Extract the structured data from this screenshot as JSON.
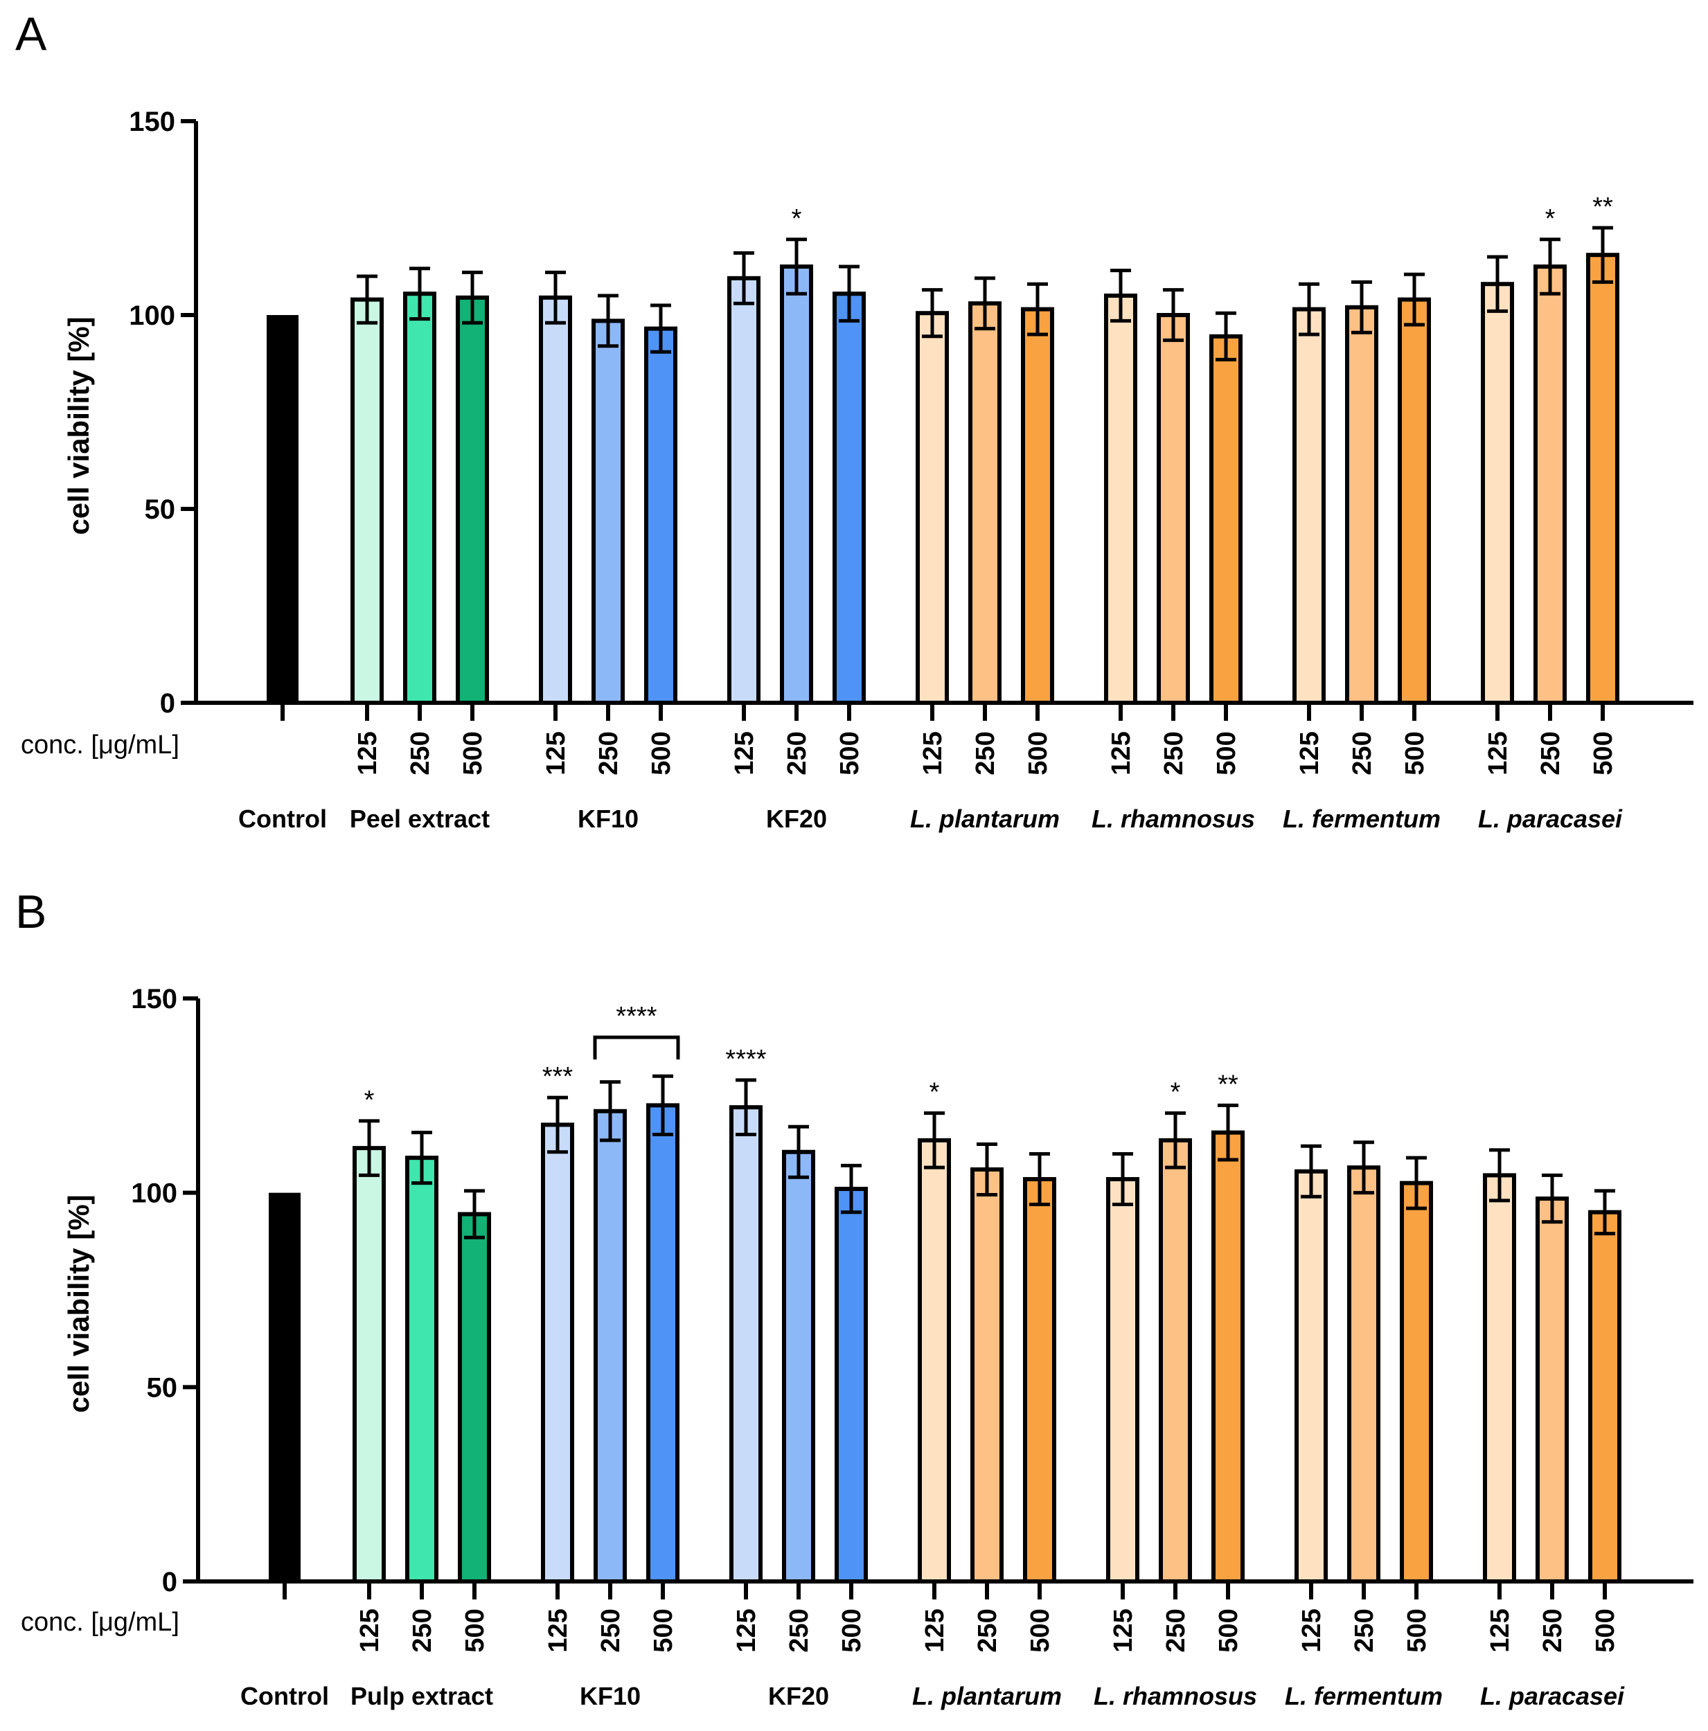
{
  "chart_data": [
    {
      "panel_label": "A",
      "type": "bar",
      "ylabel": "cell viability [%]",
      "ylim": [
        0,
        150
      ],
      "yticks": [
        "0",
        "50",
        "100",
        "150"
      ],
      "xlabel": "conc. [μg/mL]",
      "control": {
        "label": "Control",
        "value": 100,
        "color": "#000000"
      },
      "groups": [
        {
          "name": "Peel extract",
          "italic": false,
          "colors": [
            "#c9f7e4",
            "#3fe6ad",
            "#12b176"
          ],
          "values": [
            104,
            105.5,
            104.5
          ],
          "errors": [
            6,
            6.5,
            6.5
          ],
          "stars": [
            "",
            "",
            ""
          ]
        },
        {
          "name": "KF10",
          "italic": false,
          "colors": [
            "#c8dcfa",
            "#8db8f8",
            "#4e93f5"
          ],
          "values": [
            104.5,
            98.5,
            96.5
          ],
          "errors": [
            6.5,
            6.5,
            6
          ],
          "stars": [
            "",
            "",
            ""
          ]
        },
        {
          "name": "KF20",
          "italic": false,
          "colors": [
            "#c8dcfa",
            "#8db8f8",
            "#4e93f5"
          ],
          "values": [
            109.5,
            112.5,
            105.5
          ],
          "errors": [
            6.5,
            7,
            7
          ],
          "stars": [
            "",
            "*",
            ""
          ]
        },
        {
          "name": "L. plantarum",
          "italic": true,
          "colors": [
            "#fde1c0",
            "#fdc085",
            "#f8a242"
          ],
          "values": [
            100.5,
            103,
            101.5
          ],
          "errors": [
            6,
            6.5,
            6.5
          ],
          "stars": [
            "",
            "",
            ""
          ]
        },
        {
          "name": "L. rhamnosus",
          "italic": true,
          "colors": [
            "#fde1c0",
            "#fdc085",
            "#f8a242"
          ],
          "values": [
            105,
            100,
            94.5
          ],
          "errors": [
            6.5,
            6.5,
            6
          ],
          "stars": [
            "",
            "",
            ""
          ]
        },
        {
          "name": "L. fermentum",
          "italic": true,
          "colors": [
            "#fde1c0",
            "#fdc085",
            "#f8a242"
          ],
          "values": [
            101.5,
            102,
            104
          ],
          "errors": [
            6.5,
            6.5,
            6.5
          ],
          "stars": [
            "",
            "",
            ""
          ]
        },
        {
          "name": "L. paracasei",
          "italic": true,
          "colors": [
            "#fde1c0",
            "#fdc085",
            "#f8a242"
          ],
          "values": [
            108,
            112.5,
            115.5
          ],
          "errors": [
            7,
            7,
            7
          ],
          "stars": [
            "",
            "*",
            "**"
          ]
        }
      ],
      "concentrations": [
        "125",
        "250",
        "500"
      ],
      "brackets": []
    },
    {
      "panel_label": "B",
      "type": "bar",
      "ylabel": "cell viability [%]",
      "ylim": [
        0,
        150
      ],
      "yticks": [
        "0",
        "50",
        "100",
        "150"
      ],
      "xlabel": "conc. [μg/mL]",
      "control": {
        "label": "Control",
        "value": 100,
        "color": "#000000"
      },
      "groups": [
        {
          "name": "Pulp extract",
          "italic": false,
          "colors": [
            "#c9f7e4",
            "#3fe6ad",
            "#12b176"
          ],
          "values": [
            111.5,
            109,
            94.5
          ],
          "errors": [
            7,
            6.5,
            6
          ],
          "stars": [
            "*",
            "",
            ""
          ]
        },
        {
          "name": "KF10",
          "italic": false,
          "colors": [
            "#c8dcfa",
            "#8db8f8",
            "#4e93f5"
          ],
          "values": [
            117.5,
            121,
            122.5
          ],
          "errors": [
            7,
            7.5,
            7.5
          ],
          "stars": [
            "***",
            "",
            ""
          ]
        },
        {
          "name": "KF20",
          "italic": false,
          "colors": [
            "#c8dcfa",
            "#8db8f8",
            "#4e93f5"
          ],
          "values": [
            122,
            110.5,
            101
          ],
          "errors": [
            7,
            6.5,
            6
          ],
          "stars": [
            "****",
            "",
            ""
          ]
        },
        {
          "name": "L. plantarum",
          "italic": true,
          "colors": [
            "#fde1c0",
            "#fdc085",
            "#f8a242"
          ],
          "values": [
            113.5,
            106,
            103.5
          ],
          "errors": [
            7,
            6.5,
            6.5
          ],
          "stars": [
            "*",
            "",
            ""
          ]
        },
        {
          "name": "L. rhamnosus",
          "italic": true,
          "colors": [
            "#fde1c0",
            "#fdc085",
            "#f8a242"
          ],
          "values": [
            103.5,
            113.5,
            115.5
          ],
          "errors": [
            6.5,
            7,
            7
          ],
          "stars": [
            "",
            "*",
            "**"
          ]
        },
        {
          "name": "L. fermentum",
          "italic": true,
          "colors": [
            "#fde1c0",
            "#fdc085",
            "#f8a242"
          ],
          "values": [
            105.5,
            106.5,
            102.5
          ],
          "errors": [
            6.5,
            6.5,
            6.5
          ],
          "stars": [
            "",
            "",
            ""
          ]
        },
        {
          "name": "L. paracasei",
          "italic": true,
          "colors": [
            "#fde1c0",
            "#fdc085",
            "#f8a242"
          ],
          "values": [
            104.5,
            98.5,
            95
          ],
          "errors": [
            6.5,
            6,
            5.5
          ],
          "stars": [
            "",
            "",
            ""
          ]
        }
      ],
      "concentrations": [
        "125",
        "250",
        "500"
      ],
      "brackets": [
        {
          "group": 1,
          "from_bar": 1,
          "to_bar": 2,
          "stars": "****",
          "value": 140
        }
      ]
    }
  ]
}
